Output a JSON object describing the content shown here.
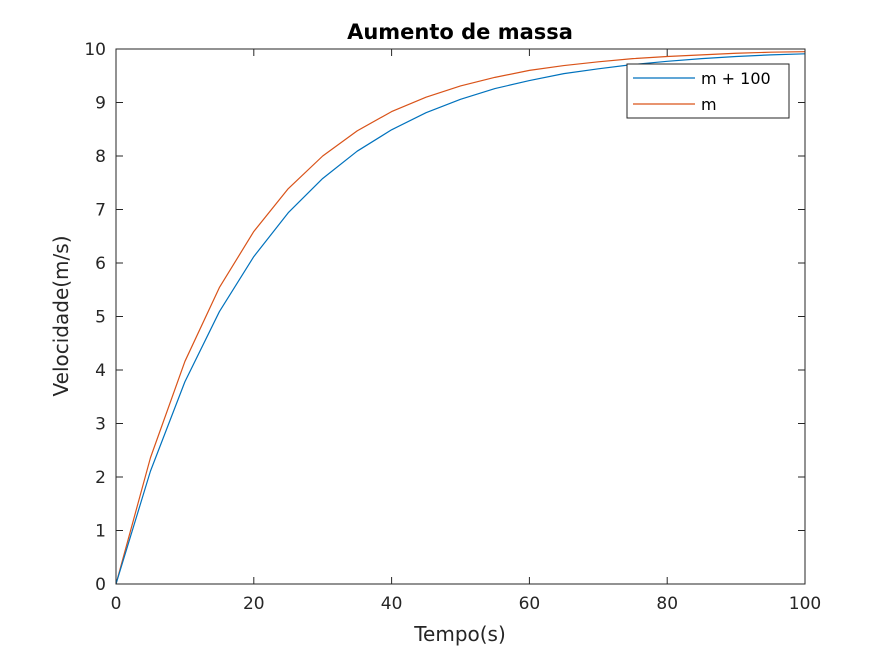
{
  "chart_data": {
    "type": "line",
    "title": "Aumento de massa",
    "xlabel": "Tempo(s)",
    "ylabel": "Velocidade(m/s)",
    "xlim": [
      0,
      100
    ],
    "ylim": [
      0,
      10
    ],
    "xticks": [
      0,
      20,
      40,
      60,
      80,
      100
    ],
    "yticks": [
      0,
      1,
      2,
      3,
      4,
      5,
      6,
      7,
      8,
      9,
      10
    ],
    "grid": false,
    "legend_position": "top-right",
    "x": [
      0,
      5,
      10,
      15,
      20,
      25,
      30,
      35,
      40,
      45,
      50,
      55,
      60,
      65,
      70,
      75,
      80,
      85,
      90,
      95,
      100
    ],
    "series": [
      {
        "name": "m + 100",
        "color": "#0072bd",
        "values": [
          0,
          2.11,
          3.78,
          5.09,
          6.12,
          6.94,
          7.58,
          8.09,
          8.49,
          8.81,
          9.06,
          9.26,
          9.41,
          9.54,
          9.63,
          9.71,
          9.77,
          9.82,
          9.86,
          9.89,
          9.91
        ]
      },
      {
        "name": "m",
        "color": "#d95319",
        "values": [
          0,
          2.36,
          4.16,
          5.54,
          6.59,
          7.39,
          8.0,
          8.47,
          8.83,
          9.1,
          9.31,
          9.47,
          9.6,
          9.69,
          9.76,
          9.82,
          9.86,
          9.89,
          9.92,
          9.94,
          9.95
        ]
      }
    ]
  }
}
